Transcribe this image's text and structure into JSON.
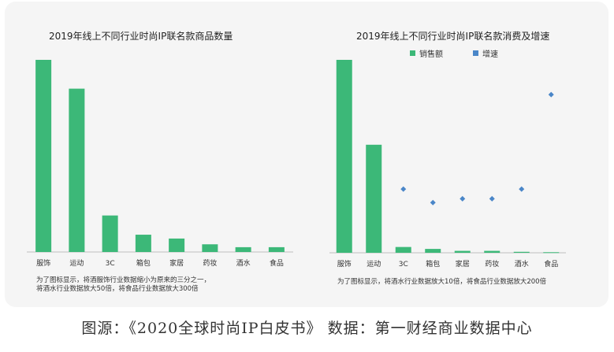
{
  "caption": "图源：《2020全球时尚IP白皮书》 数据：第一财经商业数据中心",
  "colors": {
    "bar": "#3cb878",
    "growth": "#4a86c8",
    "axis": "#bfbfbf"
  },
  "chart_data": [
    {
      "type": "bar",
      "title": "2019年线上不同行业时尚IP联名款商品数量",
      "categories": [
        "服饰",
        "运动",
        "3C",
        "箱包",
        "家居",
        "药妆",
        "酒水",
        "食品"
      ],
      "series": [
        {
          "values": [
            100,
            85,
            19,
            9,
            7,
            4,
            2.5,
            2.5
          ]
        }
      ],
      "ylim": [
        0,
        100
      ],
      "grid": false,
      "note": [
        "为了图标显示，将酒服饰行业数据缩小为原来的三分之一，",
        "将酒水行业数据放大50倍，将食品行业数据放大300倍"
      ]
    },
    {
      "type": "bar",
      "title": "2019年线上不同行业时尚IP联名款消费及增速",
      "categories": [
        "服饰",
        "运动",
        "3C",
        "箱包",
        "家居",
        "药妆",
        "酒水",
        "食品"
      ],
      "series": [
        {
          "name": "销售额",
          "type": "bar",
          "values": [
            100,
            56,
            3,
            2,
            1,
            1,
            0.5,
            0.3
          ]
        },
        {
          "name": "增速",
          "type": "scatter",
          "values": [
            null,
            null,
            33,
            26,
            28,
            28,
            33,
            82
          ]
        }
      ],
      "ylim": [
        0,
        100
      ],
      "legend_position": "top",
      "grid": false,
      "note": [
        "为了图标显示，将酒水行业数据放大10倍，将食品行业数据放大200倍"
      ]
    }
  ]
}
